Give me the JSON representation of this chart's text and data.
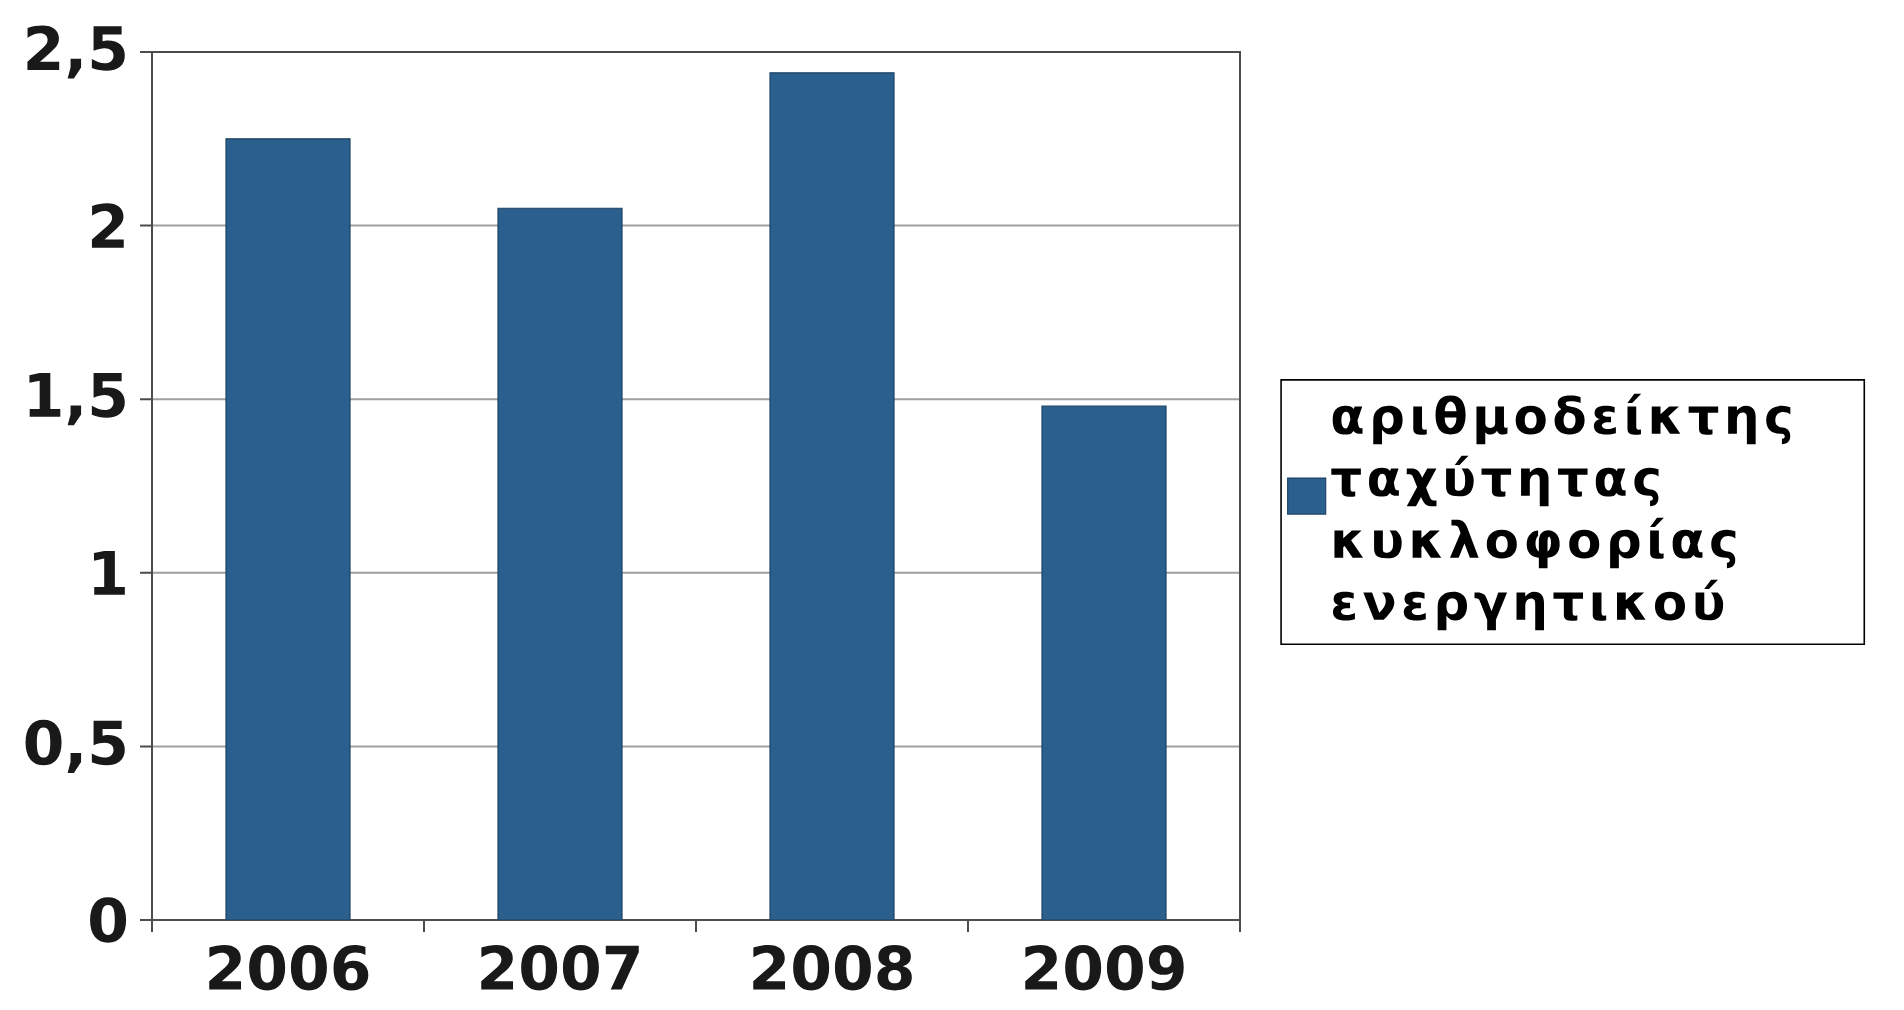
{
  "chart_data": {
    "type": "bar",
    "categories": [
      "2006",
      "2007",
      "2008",
      "2009"
    ],
    "series": [
      {
        "name": "αριθμοδείκτης ταχύτητας κυκλοφορίας ενεργητικού",
        "color": "#2b5f8e",
        "values": [
          2.25,
          2.05,
          2.44,
          1.48
        ]
      }
    ],
    "ylim": [
      0,
      2.5
    ],
    "yticks": [
      0,
      {
        "value": 0.5,
        "label": "0,5"
      },
      1,
      {
        "value": 1.5,
        "label": "1,5"
      },
      2,
      {
        "value": 2.5,
        "label": "2,5"
      }
    ],
    "grid": "y",
    "legend": "right"
  }
}
